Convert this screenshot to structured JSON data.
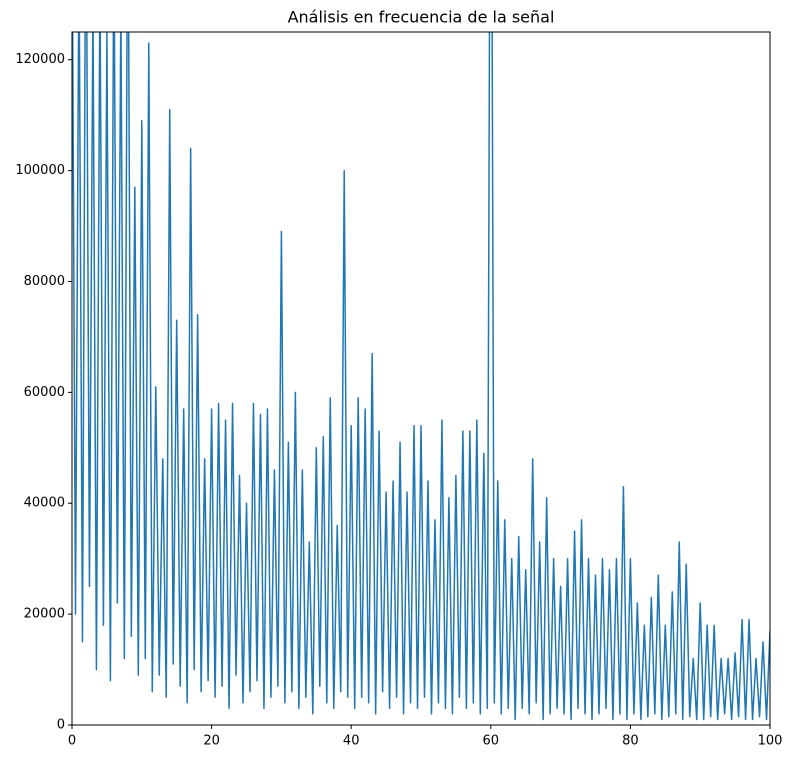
{
  "chart_data": {
    "type": "line",
    "title": "Análisis en frecuencia de la señal",
    "x": [
      0,
      0.5,
      1,
      1.5,
      2,
      2.5,
      3,
      3.5,
      4,
      4.5,
      5,
      5.5,
      6,
      6.5,
      7,
      7.5,
      8,
      8.5,
      9,
      9.5,
      10,
      10.5,
      11,
      11.5,
      12,
      12.5,
      13,
      13.5,
      14,
      14.5,
      15,
      15.5,
      16,
      16.5,
      17,
      17.5,
      18,
      18.5,
      19,
      19.5,
      20,
      20.5,
      21,
      21.5,
      22,
      22.5,
      23,
      23.5,
      24,
      24.5,
      25,
      25.5,
      26,
      26.5,
      27,
      27.5,
      28,
      28.5,
      29,
      29.5,
      30,
      30.5,
      31,
      31.5,
      32,
      32.5,
      33,
      33.5,
      34,
      34.5,
      35,
      35.5,
      36,
      36.5,
      37,
      37.5,
      38,
      38.5,
      39,
      39.5,
      40,
      40.5,
      41,
      41.5,
      42,
      42.5,
      43,
      43.5,
      44,
      44.5,
      45,
      45.5,
      46,
      46.5,
      47,
      47.5,
      48,
      48.5,
      49,
      49.5,
      50,
      50.5,
      51,
      51.5,
      52,
      52.5,
      53,
      53.5,
      54,
      54.5,
      55,
      55.5,
      56,
      56.5,
      57,
      57.5,
      58,
      58.5,
      59,
      59.5,
      60,
      60.5,
      61,
      61.5,
      62,
      62.5,
      63,
      63.5,
      64,
      64.5,
      65,
      65.5,
      66,
      66.5,
      67,
      67.5,
      68,
      68.5,
      69,
      69.5,
      70,
      70.5,
      71,
      71.5,
      72,
      72.5,
      73,
      73.5,
      74,
      74.5,
      75,
      75.5,
      76,
      76.5,
      77,
      77.5,
      78,
      78.5,
      79,
      79.5,
      80,
      80.5,
      81,
      81.5,
      82,
      82.5,
      83,
      83.5,
      84,
      84.5,
      85,
      85.5,
      86,
      86.5,
      87,
      87.5,
      88,
      88.5,
      89,
      89.5,
      90,
      90.5,
      91,
      91.5,
      92,
      92.5,
      93,
      93.5,
      94,
      94.5,
      95,
      95.5,
      96,
      96.5,
      97,
      97.5,
      98,
      98.5,
      99,
      99.5,
      100
    ],
    "series": [
      {
        "color": "#1f77b4",
        "values": [
          150000,
          20000,
          140000,
          15000,
          160000,
          25000,
          130000,
          10000,
          135000,
          18000,
          125000,
          8000,
          145000,
          22000,
          130000,
          12000,
          160000,
          16000,
          97000,
          9000,
          109000,
          12000,
          123000,
          6000,
          61000,
          9000,
          48000,
          5000,
          111000,
          11000,
          73000,
          7000,
          57000,
          4000,
          104000,
          10000,
          74000,
          6000,
          48000,
          8000,
          57000,
          5000,
          58000,
          7000,
          55000,
          3000,
          58000,
          9000,
          45000,
          4000,
          40000,
          6000,
          58000,
          8000,
          56000,
          3000,
          57000,
          5000,
          46000,
          7000,
          89000,
          4000,
          51000,
          6000,
          60000,
          3000,
          46000,
          5000,
          33000,
          2000,
          50000,
          7000,
          52000,
          4000,
          59000,
          3000,
          36000,
          6000,
          100000,
          5000,
          54000,
          3000,
          59000,
          5000,
          57000,
          4000,
          67000,
          2000,
          53000,
          6000,
          42000,
          3000,
          44000,
          5000,
          51000,
          2000,
          42000,
          4000,
          54000,
          3000,
          54000,
          5000,
          44000,
          2000,
          37000,
          4000,
          55000,
          3000,
          41000,
          2000,
          45000,
          5000,
          53000,
          3000,
          53000,
          4000,
          55000,
          2000,
          49000,
          3000,
          200000,
          4000,
          44000,
          2000,
          37000,
          3000,
          30000,
          1000,
          34000,
          3000,
          28000,
          2000,
          48000,
          4000,
          33000,
          1000,
          41000,
          2000,
          30000,
          3000,
          25000,
          2000,
          30000,
          1000,
          35000,
          3000,
          37000,
          2000,
          30000,
          1000,
          27000,
          2000,
          30000,
          3000,
          28000,
          1000,
          30000,
          2000,
          43000,
          1000,
          30000,
          2000,
          22000,
          1000,
          18000,
          1500,
          23000,
          2000,
          27000,
          1000,
          18000,
          1500,
          24000,
          2000,
          33000,
          1000,
          29000,
          1500,
          12000,
          1000,
          22000,
          1000,
          18000,
          1500,
          18000,
          1000,
          12000,
          2000,
          12000,
          1000,
          13000,
          1500,
          19000,
          1000,
          19000,
          1000,
          12000,
          1500,
          15000,
          1000,
          17000
        ]
      }
    ],
    "xlim": [
      0,
      100
    ],
    "xticks": [
      0,
      20,
      40,
      60,
      80,
      100
    ],
    "ylim": [
      0,
      125000
    ],
    "yticks": [
      0,
      20000,
      40000,
      60000,
      80000,
      100000,
      120000
    ]
  }
}
